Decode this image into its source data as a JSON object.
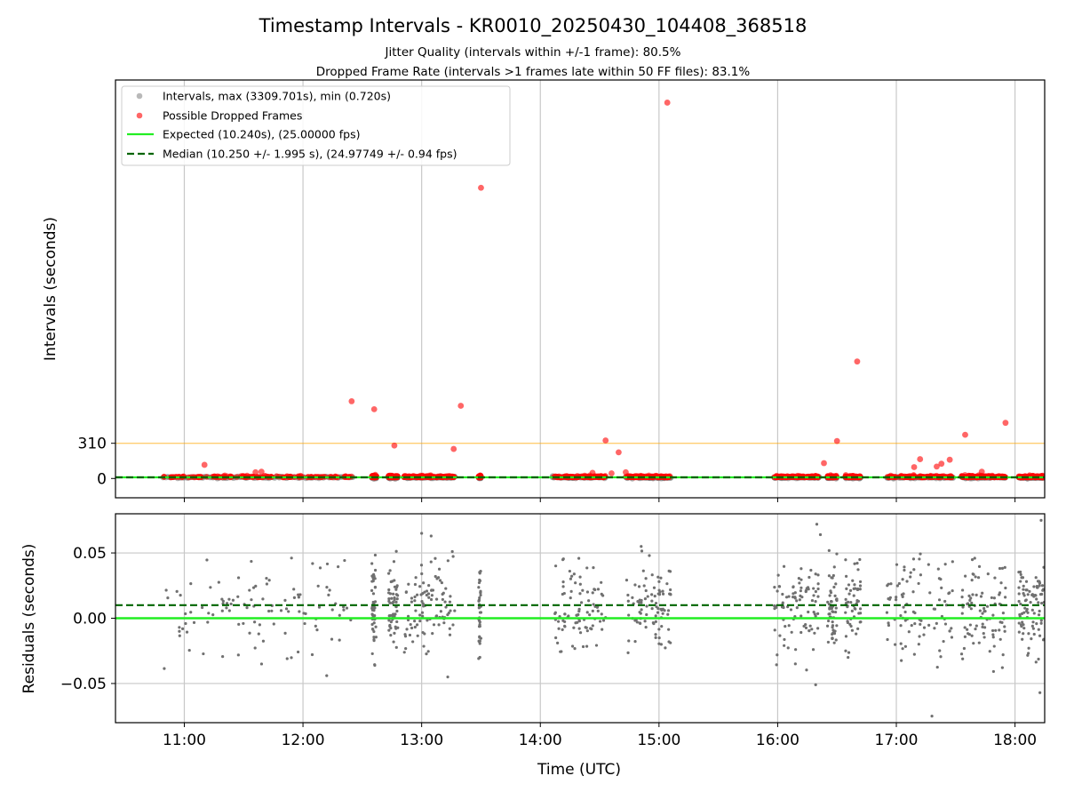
{
  "chart_data": {
    "type": "scatter",
    "title": "Timestamp Intervals - KR0010_20250430_104408_368518",
    "subtitle_lines": [
      "Jitter Quality (intervals within +/-1 frame): 80.5%",
      "Dropped Frame Rate (intervals >1 frames late within 50 FF files): 83.1%"
    ],
    "xlabel": "Time (UTC)",
    "x_unit": "hours UTC",
    "xlim": [
      10.42,
      18.25
    ],
    "x_ticks": [
      {
        "value": 11,
        "label": "11:00"
      },
      {
        "value": 12,
        "label": "12:00"
      },
      {
        "value": 13,
        "label": "13:00"
      },
      {
        "value": 14,
        "label": "14:00"
      },
      {
        "value": 15,
        "label": "15:00"
      },
      {
        "value": 16,
        "label": "16:00"
      },
      {
        "value": 17,
        "label": "17:00"
      },
      {
        "value": 18,
        "label": "18:00"
      }
    ],
    "top": {
      "ylabel": "Intervals (seconds)",
      "ylim": [
        -170,
        3509
      ],
      "y_ticks": [
        {
          "value": 0,
          "label": "0"
        },
        {
          "value": 310,
          "label": "310"
        }
      ],
      "threshold_value": 310,
      "expected_value": 10.24,
      "median_value": 10.25,
      "colors": {
        "expected": "#22ee22",
        "median": "#006400",
        "threshold": "#ffa500",
        "normal": "#808080",
        "dropped": "#ff0000"
      },
      "legend": {
        "position": "upper-left",
        "entries": [
          "Intervals, max (3309.701s), min (0.720s)",
          "Possible Dropped Frames",
          "Expected (10.240s), (25.00000 fps)",
          "Median (10.250 +/- 1.995 s), (24.97749 +/- 0.94 fps)"
        ]
      },
      "segments": [
        {
          "start": 10.82,
          "end": 12.42,
          "density": 130
        },
        {
          "start": 12.58,
          "end": 12.62,
          "density": 60
        },
        {
          "start": 12.72,
          "end": 12.8,
          "density": 70
        },
        {
          "start": 12.85,
          "end": 13.28,
          "density": 120
        },
        {
          "start": 13.48,
          "end": 13.5,
          "density": 50
        },
        {
          "start": 14.1,
          "end": 14.55,
          "density": 110
        },
        {
          "start": 14.72,
          "end": 15.1,
          "density": 110
        },
        {
          "start": 15.97,
          "end": 16.35,
          "density": 110
        },
        {
          "start": 16.42,
          "end": 16.5,
          "density": 70
        },
        {
          "start": 16.57,
          "end": 16.7,
          "density": 70
        },
        {
          "start": 16.92,
          "end": 17.48,
          "density": 110
        },
        {
          "start": 17.55,
          "end": 17.92,
          "density": 110
        },
        {
          "start": 18.03,
          "end": 18.25,
          "density": 110
        }
      ],
      "dropped_outliers": [
        {
          "x": 11.17,
          "y": 120
        },
        {
          "x": 11.6,
          "y": 55
        },
        {
          "x": 11.65,
          "y": 60
        },
        {
          "x": 12.41,
          "y": 680
        },
        {
          "x": 12.6,
          "y": 610
        },
        {
          "x": 12.77,
          "y": 290
        },
        {
          "x": 13.27,
          "y": 260
        },
        {
          "x": 13.33,
          "y": 640
        },
        {
          "x": 13.5,
          "y": 2560
        },
        {
          "x": 14.44,
          "y": 50
        },
        {
          "x": 14.55,
          "y": 335
        },
        {
          "x": 14.6,
          "y": 45
        },
        {
          "x": 14.66,
          "y": 230
        },
        {
          "x": 14.72,
          "y": 55
        },
        {
          "x": 15.07,
          "y": 3309.701
        },
        {
          "x": 16.39,
          "y": 135
        },
        {
          "x": 16.5,
          "y": 330
        },
        {
          "x": 16.67,
          "y": 1030
        },
        {
          "x": 17.15,
          "y": 100
        },
        {
          "x": 17.2,
          "y": 170
        },
        {
          "x": 17.34,
          "y": 105
        },
        {
          "x": 17.38,
          "y": 130
        },
        {
          "x": 17.45,
          "y": 165
        },
        {
          "x": 17.58,
          "y": 385
        },
        {
          "x": 17.72,
          "y": 60
        },
        {
          "x": 17.92,
          "y": 490
        }
      ]
    },
    "bottom": {
      "ylabel": "Residuals (seconds)",
      "ylim": [
        -0.08,
        0.08
      ],
      "y_ticks": [
        {
          "value": 0.05,
          "label": "0.05"
        },
        {
          "value": 0.0,
          "label": "0.00"
        },
        {
          "value": -0.05,
          "label": "−0.05"
        }
      ],
      "expected_value": 0.0,
      "median_value": 0.01,
      "colors": {
        "points": "#707070",
        "expected": "#22ee22",
        "median": "#006400",
        "grid": "#c8c8c8"
      },
      "residual_mean": 0.008,
      "residual_std": 0.018,
      "outliers": [
        {
          "x": 13.0,
          "y": 0.065
        },
        {
          "x": 13.08,
          "y": 0.063
        },
        {
          "x": 14.85,
          "y": 0.055
        },
        {
          "x": 16.33,
          "y": 0.072
        },
        {
          "x": 16.36,
          "y": 0.064
        },
        {
          "x": 16.32,
          "y": -0.051
        },
        {
          "x": 17.3,
          "y": -0.075
        },
        {
          "x": 18.22,
          "y": 0.075
        },
        {
          "x": 18.21,
          "y": -0.057
        },
        {
          "x": 12.2,
          "y": -0.044
        },
        {
          "x": 13.22,
          "y": -0.045
        }
      ]
    }
  }
}
